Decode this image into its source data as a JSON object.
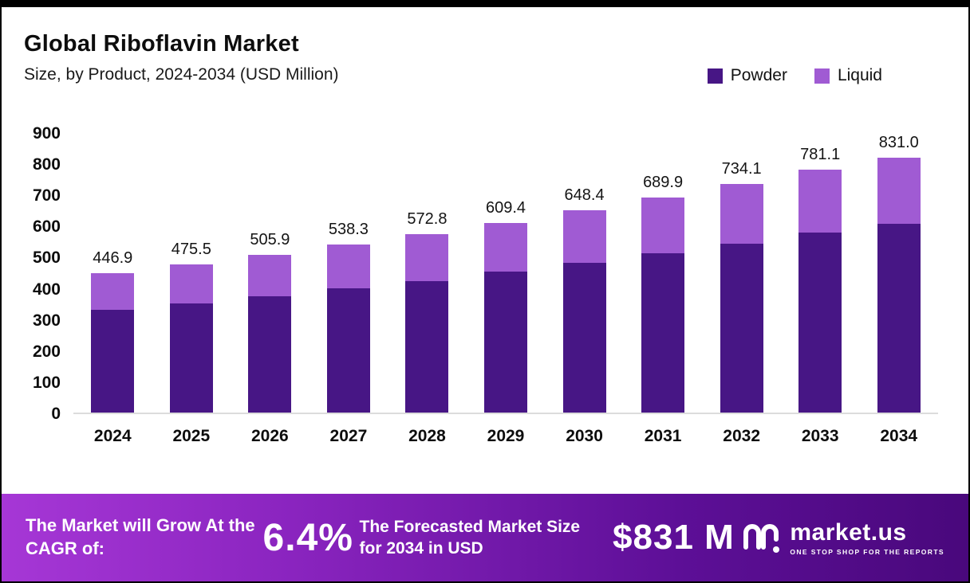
{
  "header": {
    "title": "Global Riboflavin Market",
    "subtitle": "Size, by Product, 2024-2034 (USD Million)"
  },
  "legend": {
    "items": [
      {
        "label": "Powder",
        "color": "#471685"
      },
      {
        "label": "Liquid",
        "color": "#a05bd3"
      }
    ]
  },
  "chart_data": {
    "type": "bar",
    "stacked": true,
    "title": "Global Riboflavin Market",
    "subtitle": "Size, by Product, 2024-2034 (USD Million)",
    "xlabel": "",
    "ylabel": "USD Million",
    "ylim": [
      0,
      900
    ],
    "yticks": [
      0,
      100,
      200,
      300,
      400,
      500,
      600,
      700,
      800,
      900
    ],
    "grid": false,
    "legend_position": "top-right",
    "categories": [
      "2024",
      "2025",
      "2026",
      "2027",
      "2028",
      "2029",
      "2030",
      "2031",
      "2032",
      "2033",
      "2034"
    ],
    "series": [
      {
        "name": "Powder",
        "color": "#471685",
        "values": [
          330,
          351,
          374,
          398,
          423,
          452,
          481,
          511,
          543,
          579,
          616
        ]
      },
      {
        "name": "Liquid",
        "color": "#a05bd3",
        "values": [
          116.9,
          124.5,
          131.9,
          140.3,
          149.8,
          157.4,
          167.4,
          178.9,
          191.1,
          202.1,
          215.0
        ]
      }
    ],
    "totals": [
      "446.9",
      "475.5",
      "505.9",
      "538.3",
      "572.8",
      "609.4",
      "648.4",
      "689.9",
      "734.1",
      "781.1",
      "831.0"
    ]
  },
  "footer": {
    "cagr_label": "The Market will Grow At the CAGR of:",
    "cagr_value": "6.4%",
    "forecast_label": "The Forecasted Market Size for 2034 in USD",
    "forecast_value": "$831 M",
    "brand_name": "market.us",
    "brand_tagline": "ONE STOP SHOP FOR THE REPORTS"
  }
}
